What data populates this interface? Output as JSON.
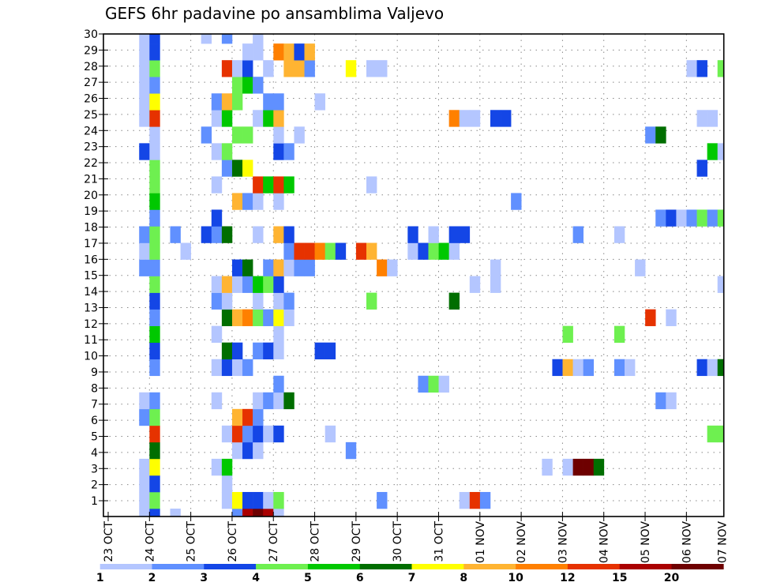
{
  "chart_data": {
    "type": "heatmap",
    "title": "GEFS 6hr padavine po ansamblima Valjevo",
    "x_tick_labels": [
      "23 OCT",
      "24 OCT",
      "25 OCT",
      "26 OCT",
      "27 OCT",
      "28 OCT",
      "29 OCT",
      "30 OCT",
      "31 OCT",
      "01 NOV",
      "02 NOV",
      "03 NOV",
      "04 NOV",
      "05 NOV",
      "06 NOV",
      "07 NOV"
    ],
    "x_step": "6hr",
    "y_tick_labels": [
      "1",
      "2",
      "3",
      "4",
      "5",
      "6",
      "7",
      "8",
      "9",
      "10",
      "11",
      "12",
      "13",
      "14",
      "15",
      "16",
      "17",
      "18",
      "19",
      "20",
      "21",
      "22",
      "23",
      "24",
      "25",
      "26",
      "27",
      "28",
      "29",
      "30"
    ],
    "legend": {
      "placement": "bottom",
      "labels": [
        "1",
        "2",
        "3",
        "4",
        "5",
        "6",
        "7",
        "8",
        "10",
        "12",
        "15",
        "20"
      ],
      "colors": [
        "#b4c6ff",
        "#6090ff",
        "#1446e6",
        "#6ef050",
        "#00c800",
        "#006e00",
        "#ffff00",
        "#ffb432",
        "#ff8000",
        "#e63200",
        "#aa0000",
        "#6e0000"
      ]
    },
    "cells_format": "row index (member, 0 = bottom) -> [time step (6hr from 23 OCT 00), colour bin 1-12]",
    "rows": [
      {
        "r": 0,
        "c": [
          [
            3,
            1
          ],
          [
            4,
            3
          ],
          [
            6,
            1
          ],
          [
            12,
            2
          ],
          [
            13,
            11
          ],
          [
            14,
            12
          ],
          [
            15,
            11
          ],
          [
            16,
            1
          ]
        ]
      },
      {
        "r": 1,
        "c": [
          [
            3,
            1
          ],
          [
            4,
            4
          ],
          [
            11,
            1
          ],
          [
            12,
            7
          ],
          [
            13,
            3
          ],
          [
            14,
            3
          ],
          [
            15,
            1
          ],
          [
            16,
            4
          ],
          [
            26,
            2
          ],
          [
            34,
            1
          ],
          [
            35,
            10
          ],
          [
            36,
            2
          ]
        ]
      },
      {
        "r": 2,
        "c": [
          [
            3,
            1
          ],
          [
            4,
            3
          ],
          [
            11,
            1
          ]
        ]
      },
      {
        "r": 3,
        "c": [
          [
            3,
            1
          ],
          [
            4,
            7
          ],
          [
            10,
            1
          ],
          [
            11,
            5
          ],
          [
            42,
            1
          ],
          [
            44,
            1
          ],
          [
            45,
            12
          ],
          [
            46,
            12
          ],
          [
            47,
            6
          ]
        ]
      },
      {
        "r": 4,
        "c": [
          [
            4,
            6
          ],
          [
            12,
            1
          ],
          [
            13,
            3
          ],
          [
            14,
            1
          ],
          [
            23,
            2
          ]
        ]
      },
      {
        "r": 5,
        "c": [
          [
            4,
            10
          ],
          [
            11,
            1
          ],
          [
            12,
            10
          ],
          [
            13,
            2
          ],
          [
            14,
            3
          ],
          [
            15,
            1
          ],
          [
            16,
            3
          ],
          [
            21,
            1
          ],
          [
            58,
            4
          ],
          [
            59,
            4
          ]
        ]
      },
      {
        "r": 6,
        "c": [
          [
            3,
            2
          ],
          [
            4,
            4
          ],
          [
            12,
            8
          ],
          [
            13,
            10
          ],
          [
            14,
            2
          ]
        ]
      },
      {
        "r": 7,
        "c": [
          [
            3,
            1
          ],
          [
            4,
            2
          ],
          [
            10,
            1
          ],
          [
            14,
            1
          ],
          [
            15,
            2
          ],
          [
            16,
            1
          ],
          [
            17,
            6
          ],
          [
            53,
            2
          ],
          [
            54,
            1
          ]
        ]
      },
      {
        "r": 8,
        "c": [
          [
            16,
            2
          ],
          [
            30,
            2
          ],
          [
            31,
            4
          ],
          [
            32,
            1
          ]
        ]
      },
      {
        "r": 9,
        "c": [
          [
            4,
            2
          ],
          [
            10,
            1
          ],
          [
            11,
            3
          ],
          [
            12,
            1
          ],
          [
            13,
            2
          ],
          [
            43,
            3
          ],
          [
            44,
            8
          ],
          [
            45,
            1
          ],
          [
            46,
            2
          ],
          [
            49,
            2
          ],
          [
            50,
            1
          ],
          [
            57,
            3
          ],
          [
            58,
            1
          ],
          [
            59,
            6
          ]
        ]
      },
      {
        "r": 10,
        "c": [
          [
            4,
            3
          ],
          [
            11,
            6
          ],
          [
            12,
            3
          ],
          [
            14,
            2
          ],
          [
            15,
            3
          ],
          [
            16,
            1
          ],
          [
            20,
            3
          ],
          [
            21,
            3
          ]
        ]
      },
      {
        "r": 11,
        "c": [
          [
            4,
            5
          ],
          [
            10,
            1
          ],
          [
            16,
            1
          ],
          [
            44,
            4
          ],
          [
            49,
            4
          ]
        ]
      },
      {
        "r": 12,
        "c": [
          [
            4,
            2
          ],
          [
            11,
            6
          ],
          [
            12,
            8
          ],
          [
            13,
            9
          ],
          [
            14,
            4
          ],
          [
            15,
            2
          ],
          [
            16,
            7
          ],
          [
            17,
            1
          ],
          [
            52,
            10
          ],
          [
            54,
            1
          ]
        ]
      },
      {
        "r": 13,
        "c": [
          [
            4,
            3
          ],
          [
            10,
            2
          ],
          [
            11,
            1
          ],
          [
            14,
            1
          ],
          [
            16,
            1
          ],
          [
            17,
            2
          ],
          [
            25,
            4
          ],
          [
            33,
            6
          ]
        ]
      },
      {
        "r": 14,
        "c": [
          [
            4,
            4
          ],
          [
            10,
            1
          ],
          [
            11,
            8
          ],
          [
            12,
            1
          ],
          [
            13,
            2
          ],
          [
            14,
            5
          ],
          [
            15,
            4
          ],
          [
            16,
            3
          ],
          [
            35,
            1
          ],
          [
            37,
            1
          ],
          [
            59,
            1
          ]
        ]
      },
      {
        "r": 15,
        "c": [
          [
            3,
            2
          ],
          [
            4,
            2
          ],
          [
            12,
            3
          ],
          [
            13,
            6
          ],
          [
            15,
            2
          ],
          [
            16,
            8
          ],
          [
            17,
            1
          ],
          [
            18,
            2
          ],
          [
            19,
            2
          ],
          [
            26,
            9
          ],
          [
            27,
            1
          ],
          [
            37,
            1
          ],
          [
            51,
            1
          ]
        ]
      },
      {
        "r": 16,
        "c": [
          [
            3,
            1
          ],
          [
            4,
            4
          ],
          [
            7,
            1
          ],
          [
            17,
            2
          ],
          [
            18,
            10
          ],
          [
            19,
            10
          ],
          [
            20,
            9
          ],
          [
            21,
            4
          ],
          [
            22,
            3
          ],
          [
            24,
            10
          ],
          [
            25,
            8
          ],
          [
            29,
            1
          ],
          [
            30,
            3
          ],
          [
            31,
            4
          ],
          [
            32,
            5
          ],
          [
            33,
            1
          ]
        ]
      },
      {
        "r": 17,
        "c": [
          [
            3,
            2
          ],
          [
            4,
            4
          ],
          [
            6,
            2
          ],
          [
            9,
            3
          ],
          [
            10,
            2
          ],
          [
            11,
            6
          ],
          [
            14,
            1
          ],
          [
            16,
            8
          ],
          [
            17,
            3
          ],
          [
            29,
            3
          ],
          [
            31,
            1
          ],
          [
            33,
            3
          ],
          [
            34,
            3
          ],
          [
            45,
            2
          ],
          [
            49,
            1
          ]
        ]
      },
      {
        "r": 18,
        "c": [
          [
            4,
            2
          ],
          [
            10,
            3
          ],
          [
            53,
            2
          ],
          [
            54,
            3
          ],
          [
            55,
            1
          ],
          [
            56,
            2
          ],
          [
            57,
            4
          ],
          [
            58,
            2
          ],
          [
            59,
            4
          ]
        ]
      },
      {
        "r": 19,
        "c": [
          [
            4,
            5
          ],
          [
            12,
            8
          ],
          [
            13,
            2
          ],
          [
            14,
            1
          ],
          [
            16,
            1
          ],
          [
            39,
            2
          ]
        ]
      },
      {
        "r": 20,
        "c": [
          [
            4,
            4
          ],
          [
            10,
            1
          ],
          [
            14,
            10
          ],
          [
            15,
            5
          ],
          [
            16,
            10
          ],
          [
            17,
            5
          ],
          [
            25,
            1
          ]
        ]
      },
      {
        "r": 21,
        "c": [
          [
            4,
            4
          ],
          [
            11,
            2
          ],
          [
            12,
            6
          ],
          [
            13,
            7
          ],
          [
            57,
            3
          ]
        ]
      },
      {
        "r": 22,
        "c": [
          [
            3,
            3
          ],
          [
            4,
            1
          ],
          [
            10,
            1
          ],
          [
            11,
            4
          ],
          [
            16,
            3
          ],
          [
            17,
            2
          ],
          [
            58,
            5
          ],
          [
            59,
            1
          ]
        ]
      },
      {
        "r": 23,
        "c": [
          [
            4,
            1
          ],
          [
            9,
            2
          ],
          [
            12,
            4
          ],
          [
            13,
            4
          ],
          [
            16,
            1
          ],
          [
            18,
            1
          ],
          [
            52,
            2
          ],
          [
            53,
            6
          ]
        ]
      },
      {
        "r": 24,
        "c": [
          [
            3,
            1
          ],
          [
            4,
            10
          ],
          [
            10,
            1
          ],
          [
            11,
            5
          ],
          [
            14,
            1
          ],
          [
            15,
            5
          ],
          [
            16,
            8
          ],
          [
            33,
            9
          ],
          [
            34,
            1
          ],
          [
            35,
            1
          ],
          [
            37,
            3
          ],
          [
            38,
            3
          ],
          [
            57,
            1
          ],
          [
            58,
            1
          ]
        ]
      },
      {
        "r": 25,
        "c": [
          [
            3,
            1
          ],
          [
            4,
            7
          ],
          [
            10,
            2
          ],
          [
            11,
            8
          ],
          [
            12,
            4
          ],
          [
            15,
            2
          ],
          [
            16,
            2
          ],
          [
            20,
            1
          ]
        ]
      },
      {
        "r": 26,
        "c": [
          [
            3,
            1
          ],
          [
            4,
            2
          ],
          [
            12,
            4
          ],
          [
            13,
            5
          ],
          [
            14,
            2
          ]
        ]
      },
      {
        "r": 27,
        "c": [
          [
            3,
            1
          ],
          [
            4,
            4
          ],
          [
            11,
            10
          ],
          [
            12,
            1
          ],
          [
            13,
            3
          ],
          [
            15,
            1
          ],
          [
            17,
            8
          ],
          [
            18,
            8
          ],
          [
            19,
            2
          ],
          [
            23,
            7
          ],
          [
            25,
            1
          ],
          [
            26,
            1
          ],
          [
            56,
            1
          ],
          [
            57,
            3
          ],
          [
            59,
            4
          ]
        ]
      },
      {
        "r": 28,
        "c": [
          [
            3,
            1
          ],
          [
            4,
            3
          ],
          [
            13,
            1
          ],
          [
            14,
            1
          ],
          [
            16,
            9
          ],
          [
            17,
            8
          ],
          [
            18,
            3
          ],
          [
            19,
            8
          ]
        ]
      },
      {
        "r": 29,
        "c": [
          [
            3,
            1
          ],
          [
            4,
            3
          ],
          [
            9,
            1
          ],
          [
            11,
            2
          ],
          [
            14,
            1
          ]
        ]
      }
    ]
  }
}
